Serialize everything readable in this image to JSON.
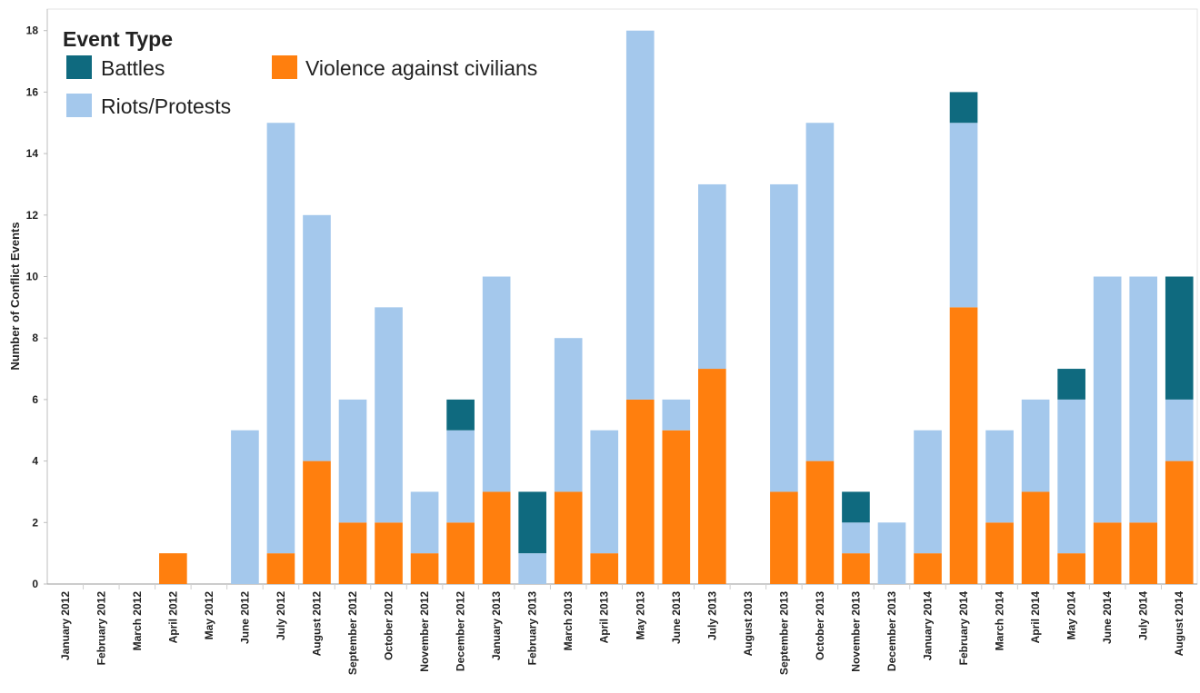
{
  "chart_data": {
    "type": "bar",
    "stacked": true,
    "ylabel": "Number of Conflict Events",
    "ylim": [
      0,
      18.7
    ],
    "yticks": [
      0,
      2,
      4,
      6,
      8,
      10,
      12,
      14,
      16,
      18
    ],
    "grid": false,
    "legend": {
      "title": "Event Type",
      "placement": "top-left",
      "entries": [
        {
          "label": "Battles",
          "color": "#0f6a7f"
        },
        {
          "label": "Violence against civilians",
          "color": "#ff7f0e"
        },
        {
          "label": "Riots/Protests",
          "color": "#a4c8ec"
        }
      ]
    },
    "categories": [
      "January 2012",
      "February 2012",
      "March 2012",
      "April 2012",
      "May 2012",
      "June 2012",
      "July 2012",
      "August 2012",
      "September 2012",
      "October 2012",
      "November 2012",
      "December 2012",
      "January 2013",
      "February 2013",
      "March 2013",
      "April 2013",
      "May 2013",
      "June 2013",
      "July 2013",
      "August 2013",
      "September 2013",
      "October 2013",
      "November 2013",
      "December 2013",
      "January 2014",
      "February 2014",
      "March 2014",
      "April 2014",
      "May 2014",
      "June 2014",
      "July 2014",
      "August 2014"
    ],
    "series": [
      {
        "name": "Violence against civilians",
        "color": "#ff7f0e",
        "values": [
          0,
          0,
          0,
          1,
          0,
          0,
          1,
          4,
          2,
          2,
          1,
          2,
          3,
          0,
          3,
          1,
          6,
          5,
          7,
          0,
          3,
          4,
          1,
          0,
          1,
          9,
          2,
          3,
          1,
          2,
          2,
          4
        ]
      },
      {
        "name": "Riots/Protests",
        "color": "#a4c8ec",
        "values": [
          0,
          0,
          0,
          0,
          0,
          5,
          14,
          8,
          4,
          7,
          2,
          3,
          7,
          1,
          5,
          4,
          12,
          1,
          6,
          0,
          10,
          11,
          1,
          2,
          4,
          6,
          3,
          3,
          5,
          8,
          8,
          2
        ]
      },
      {
        "name": "Battles",
        "color": "#0f6a7f",
        "values": [
          0,
          0,
          0,
          0,
          0,
          0,
          0,
          0,
          0,
          0,
          0,
          1,
          0,
          2,
          0,
          0,
          0,
          0,
          0,
          0,
          0,
          0,
          1,
          0,
          0,
          1,
          0,
          0,
          1,
          0,
          0,
          4
        ]
      }
    ]
  }
}
